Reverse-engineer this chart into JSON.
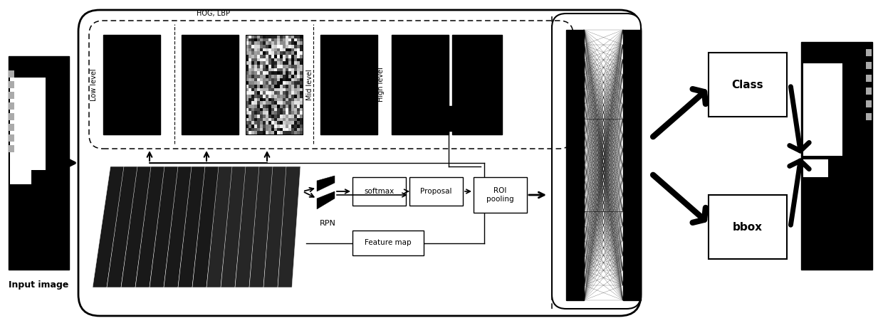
{
  "bg_color": "#ffffff",
  "fig_w": 12.4,
  "fig_h": 4.54,
  "dpi": 100,
  "labels": {
    "input_image": "Input image",
    "low_level": "Low level",
    "hog_lbp": "HOG, LBP",
    "mid_level": "Mid level",
    "high_level": "High level",
    "softmax": "softmax",
    "proposal": "Proposal",
    "rpn": "RPN",
    "feature_map": "Feature map",
    "roi_pooling": "ROI\npooling",
    "class_label": "Class",
    "bbox_label": "bbox"
  }
}
